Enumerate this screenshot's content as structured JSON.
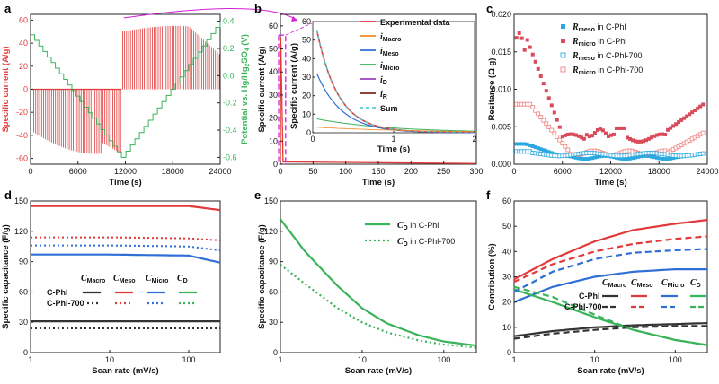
{
  "colors": {
    "red": "#e23a3a",
    "green": "#3ab35a",
    "blue": "#2f6fd6",
    "black": "#333333",
    "pink": "#d94b5a",
    "cyan": "#2aa8e0",
    "magenta": "#d61fd6",
    "orange": "#f08a24",
    "purple": "#a040c0",
    "brown": "#7b2a1a",
    "teal": "#4ad0d0",
    "lightred": "#f08080"
  },
  "chart_data": [
    {
      "panel": "a",
      "label": "a",
      "type": "line",
      "title": "",
      "xlabel": "Time (s)",
      "ylabel": "Specific current (A/g)",
      "y2label": "Potential vs. Hg/Hg2SO4 (V)",
      "y2label_parts": {
        "pre": "Potential vs. Hg/Hg",
        "mid": "SO",
        "post": " (V)",
        "sub1": "2",
        "sub2": "4"
      },
      "xlim": [
        0,
        24000
      ],
      "ylim": [
        -65,
        65
      ],
      "y2lim": [
        -0.65,
        0.45
      ],
      "xticks": [
        "0",
        "6000",
        "12000",
        "18000",
        "24000"
      ],
      "yticks": [
        "60",
        "40",
        "20",
        "0",
        "-20",
        "-40",
        "-60"
      ],
      "y2ticks": [
        "0.4",
        "0.2",
        "0.0",
        "-0.2",
        "-0.4",
        "-0.6"
      ],
      "series": [
        {
          "name": "Specific current",
          "values_description_free": true,
          "cathodic_min": -56,
          "anodic_max": 55,
          "switch_time": 11500
        },
        {
          "name": "Potential",
          "start": 0.3,
          "min": -0.6,
          "end": 0.4
        }
      ]
    },
    {
      "panel": "b",
      "label": "b",
      "type": "line",
      "xlabel": "Time (s)",
      "ylabel": "Specific current (A/g)",
      "xlim": [
        0,
        300
      ],
      "ylim": [
        0,
        65
      ],
      "xticks": [
        "0",
        "50",
        "100",
        "150",
        "200",
        "250",
        "300"
      ],
      "yticks": [
        "0",
        "10",
        "20",
        "30",
        "40",
        "50",
        "60"
      ],
      "inset": {
        "xlabel": "Time (s)",
        "ylabel": "Specific current (A/g)",
        "xlim": [
          0,
          2
        ],
        "ylim": [
          0,
          60
        ],
        "xticks": [
          "0",
          "1",
          "2"
        ],
        "yticks": [
          "0",
          "10",
          "20",
          "30",
          "40",
          "50",
          "60"
        ]
      },
      "legend": [
        {
          "name": "Experimental data",
          "sym": "",
          "sub": ""
        },
        {
          "name": "",
          "sym": "i",
          "sub": "Macro"
        },
        {
          "name": "",
          "sym": "i",
          "sub": "Meso"
        },
        {
          "name": "",
          "sym": "i",
          "sub": "Micro"
        },
        {
          "name": "",
          "sym": "i",
          "sub": "D"
        },
        {
          "name": "",
          "sym": "i",
          "sub": "R"
        },
        {
          "name": "Sum",
          "sym": "",
          "sub": ""
        }
      ]
    },
    {
      "panel": "c",
      "label": "c",
      "type": "scatter",
      "xlabel": "Time (s)",
      "ylabel": "Resitance (Ω g)",
      "xlim": [
        0,
        24000
      ],
      "ylim": [
        0,
        0.02
      ],
      "xticks": [
        "0",
        "6000",
        "12000",
        "18000",
        "24000"
      ],
      "yticks": [
        "0.020",
        "0.015",
        "0.010",
        "0.005",
        "0.000"
      ],
      "legend": [
        {
          "sym": "R",
          "sub": "meso",
          "text": " in C-Phl"
        },
        {
          "sym": "R",
          "sub": "micro",
          "text": " in C-Phl"
        },
        {
          "sym": "R",
          "sub": "meso",
          "text": " in C-Phl-700"
        },
        {
          "sym": "R",
          "sub": "micro",
          "text": " in C-Phl-700"
        }
      ]
    },
    {
      "panel": "d",
      "label": "d",
      "type": "line",
      "xlabel": "Scan rate (mV/s)",
      "ylabel": "Specific capacitance (F/g)",
      "xscale": "log",
      "xlim": [
        1,
        250
      ],
      "ylim": [
        0,
        150
      ],
      "xticks": [
        "1",
        "10",
        "100"
      ],
      "yticks": [
        "0",
        "30",
        "60",
        "90",
        "120",
        "150"
      ],
      "series": [
        {
          "name": "C-Phl CMacro",
          "values": [
            31,
            31,
            31,
            31
          ]
        },
        {
          "name": "C-Phl CMeso",
          "values": [
            145,
            145,
            145,
            141
          ]
        },
        {
          "name": "C-Phl CMicro",
          "values": [
            97,
            97,
            96,
            89
          ]
        },
        {
          "name": "C-Phl-700 CMacro",
          "values": [
            24,
            24,
            24,
            24
          ]
        },
        {
          "name": "C-Phl-700 CMeso",
          "values": [
            114,
            114,
            113,
            111
          ]
        },
        {
          "name": "C-Phl-700 CMicro",
          "values": [
            106,
            106,
            105,
            101
          ]
        }
      ],
      "legend_rows": [
        "C-Phl",
        "C-Phl-700"
      ],
      "legend_cols": [
        {
          "sym": "C",
          "sub": "Macro"
        },
        {
          "sym": "C",
          "sub": "Meso"
        },
        {
          "sym": "C",
          "sub": "Micro"
        },
        {
          "sym": "C",
          "sub": "D"
        }
      ]
    },
    {
      "panel": "e",
      "label": "e",
      "type": "line",
      "xlabel": "Scan rate (mV/s)",
      "ylabel": "Specific capacitance (F/g)",
      "xscale": "log",
      "xlim": [
        1,
        250
      ],
      "ylim": [
        0,
        150
      ],
      "xticks": [
        "1",
        "10",
        "100"
      ],
      "yticks": [
        "0",
        "30",
        "60",
        "90",
        "120",
        "150"
      ],
      "series": [
        {
          "name": "CD in C-Phl",
          "x": [
            1,
            2,
            5,
            10,
            20,
            50,
            100,
            250
          ],
          "values": [
            132,
            100,
            66,
            44,
            29,
            17,
            11,
            7
          ]
        },
        {
          "name": "CD in C-Phl-700",
          "x": [
            1,
            2,
            5,
            10,
            20,
            50,
            100,
            250
          ],
          "values": [
            87,
            68,
            44,
            30,
            20,
            12,
            8,
            5
          ]
        }
      ],
      "legend": [
        {
          "sym": "C",
          "sub": "D",
          "text": " in C-Phl"
        },
        {
          "sym": "C",
          "sub": "D",
          "text": " in C-Phl-700"
        }
      ]
    },
    {
      "panel": "f",
      "label": "f",
      "type": "line",
      "xlabel": "Scan rate (mV/s)",
      "ylabel": "Contribution (%)",
      "xscale": "log",
      "xlim": [
        1,
        250
      ],
      "ylim": [
        0,
        60
      ],
      "xticks": [
        "1",
        "10",
        "100"
      ],
      "yticks": [
        "0",
        "10",
        "20",
        "30",
        "40",
        "50",
        "60"
      ],
      "series": [
        {
          "name": "C-Phl Macro",
          "x": [
            1,
            3,
            10,
            30,
            100,
            250
          ],
          "values": [
            6.5,
            8.5,
            10,
            10.8,
            11.3,
            11.7
          ]
        },
        {
          "name": "C-Phl Meso",
          "x": [
            1,
            3,
            10,
            30,
            100,
            250
          ],
          "values": [
            29,
            37,
            44,
            48.5,
            51,
            52.5
          ]
        },
        {
          "name": "C-Phl Micro",
          "x": [
            1,
            3,
            10,
            30,
            100,
            250
          ],
          "values": [
            20,
            26,
            30,
            32,
            33,
            33
          ]
        },
        {
          "name": "C-Phl D",
          "x": [
            1,
            3,
            10,
            30,
            100,
            250
          ],
          "values": [
            25,
            20,
            14,
            9,
            5,
            3
          ]
        },
        {
          "name": "C-Phl-700 Macro",
          "x": [
            1,
            3,
            10,
            30,
            100,
            250
          ],
          "values": [
            5.5,
            7.5,
            9,
            10,
            10.5,
            10.5
          ]
        },
        {
          "name": "C-Phl-700 Meso",
          "x": [
            1,
            3,
            10,
            30,
            100,
            250
          ],
          "values": [
            28,
            35,
            40,
            43,
            45,
            46
          ]
        },
        {
          "name": "C-Phl-700 Micro",
          "x": [
            1,
            3,
            10,
            30,
            100,
            250
          ],
          "values": [
            24,
            32,
            37,
            39.5,
            40.5,
            41
          ]
        },
        {
          "name": "C-Phl-700 D",
          "x": [
            1,
            3,
            10,
            30,
            100,
            250
          ],
          "values": [
            26,
            22,
            15,
            9,
            5,
            3
          ]
        }
      ],
      "legend_rows": [
        "C-Phl",
        "C-Phl-700"
      ],
      "legend_cols": [
        {
          "sym": "C",
          "sub": "Macro"
        },
        {
          "sym": "C",
          "sub": "Meso"
        },
        {
          "sym": "C",
          "sub": "Micro"
        },
        {
          "sym": "C",
          "sub": "D"
        }
      ]
    }
  ]
}
